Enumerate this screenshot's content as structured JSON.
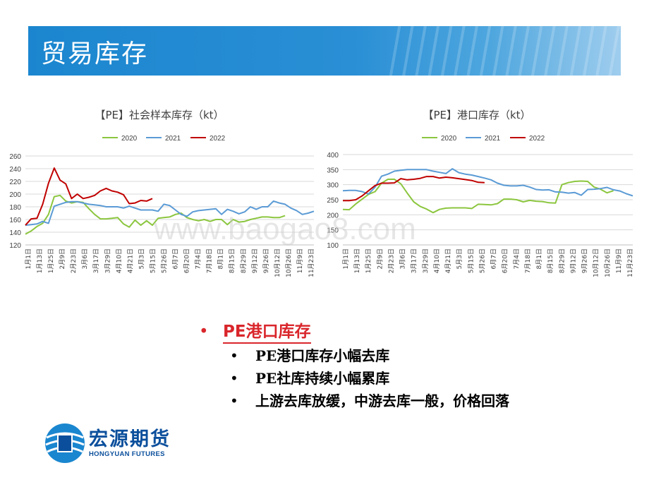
{
  "slide_title": "贸易库存",
  "watermark": "www.baogao8.com",
  "colors": {
    "s2020": "#8cc63f",
    "s2021": "#5b9bd5",
    "s2022": "#c00000",
    "accent": "#d9262b",
    "brand": "#0b4f9c"
  },
  "chart_data": [
    {
      "type": "line",
      "title": "【PE】社会样本库存（kt）",
      "ylim": [
        120,
        260
      ],
      "yticks": [
        120,
        140,
        160,
        180,
        200,
        220,
        240,
        260
      ],
      "grid": true,
      "legend_position": "top",
      "xticks": [
        "1月1日",
        "1月13日",
        "1月25日",
        "2月9日",
        "2月23日",
        "3月6日",
        "3月17日",
        "3月29日",
        "4月10日",
        "4月21日",
        "5月3日",
        "5月15日",
        "5月26日",
        "6月7日",
        "6月20日",
        "7月4日",
        "7月18日",
        "8月1日",
        "8月15日",
        "8月29日",
        "9月12日",
        "9月26日",
        "10月12日",
        "10月26日",
        "11月9日",
        "11月23日"
      ],
      "series": [
        {
          "name": "2020",
          "values": [
            137,
            142,
            149,
            154,
            168,
            196,
            198,
            189,
            186,
            188,
            187,
            177,
            168,
            161,
            161,
            162,
            163,
            153,
            148,
            159,
            151,
            158,
            151,
            162,
            163,
            164,
            168,
            170,
            163,
            160,
            158,
            160,
            157,
            160,
            160,
            152,
            160,
            156,
            157,
            160,
            162,
            164,
            164,
            163,
            163,
            166
          ]
        },
        {
          "name": "2021",
          "values": [
            151,
            152,
            153,
            157,
            154,
            181,
            184,
            187,
            188,
            188,
            186,
            184,
            183,
            182,
            180,
            180,
            180,
            178,
            181,
            178,
            175,
            175,
            175,
            173,
            184,
            182,
            175,
            168,
            165,
            172,
            174,
            175,
            176,
            177,
            168,
            176,
            173,
            169,
            172,
            180,
            176,
            180,
            180,
            189,
            186,
            184,
            178,
            174,
            168,
            170,
            173
          ]
        },
        {
          "name": "2022",
          "values": [
            151,
            161,
            162,
            184,
            217,
            241,
            222,
            216,
            193,
            200,
            193,
            195,
            198,
            205,
            209,
            205,
            203,
            199,
            185,
            186,
            190,
            189,
            193
          ]
        }
      ]
    },
    {
      "type": "line",
      "title": "【PE】港口库存（kt）",
      "ylim": [
        100,
        400
      ],
      "yticks": [
        100,
        150,
        200,
        250,
        300,
        350,
        400
      ],
      "grid": true,
      "legend_position": "top",
      "xticks": [
        "1月1日",
        "1月13日",
        "1月25日",
        "2月9日",
        "2月23日",
        "3月6日",
        "3月17日",
        "3月29日",
        "4月10日",
        "4月21日",
        "5月3日",
        "5月15日",
        "5月26日",
        "6月7日",
        "6月20日",
        "7月4日",
        "7月18日",
        "8月1日",
        "8月15日",
        "8月29日",
        "9月12日",
        "9月26日",
        "10月12日",
        "10月26日",
        "11月9日",
        "11月23日"
      ],
      "series": [
        {
          "name": "2020",
          "values": [
            218,
            217,
            236,
            252,
            268,
            277,
            305,
            318,
            318,
            303,
            272,
            243,
            228,
            219,
            207,
            218,
            222,
            223,
            223,
            223,
            221,
            235,
            234,
            233,
            237,
            252,
            252,
            250,
            243,
            248,
            245,
            244,
            240,
            239,
            300,
            307,
            311,
            312,
            311,
            292,
            285,
            273,
            280
          ]
        },
        {
          "name": "2021",
          "values": [
            280,
            281,
            281,
            277,
            269,
            292,
            328,
            335,
            345,
            348,
            350,
            350,
            350,
            350,
            345,
            341,
            337,
            353,
            340,
            335,
            332,
            327,
            322,
            316,
            305,
            298,
            296,
            296,
            298,
            292,
            284,
            282,
            283,
            276,
            275,
            272,
            274,
            265,
            284,
            285,
            287,
            291,
            283,
            279,
            270,
            263
          ]
        },
        {
          "name": "2022",
          "values": [
            247,
            247,
            250,
            263,
            280,
            297,
            305,
            305,
            306,
            320,
            316,
            318,
            321,
            327,
            327,
            322,
            325,
            323,
            320,
            317,
            314,
            308,
            307
          ]
        }
      ]
    }
  ],
  "bullets": {
    "main": "PE港口库存",
    "items": [
      "PE港口库存小幅去库",
      "PE社库持续小幅累库",
      "上游去库放缓，中游去库一般，价格回落"
    ]
  },
  "logo": {
    "cn": "宏源期货",
    "en": "HONGYUAN FUTURES"
  }
}
